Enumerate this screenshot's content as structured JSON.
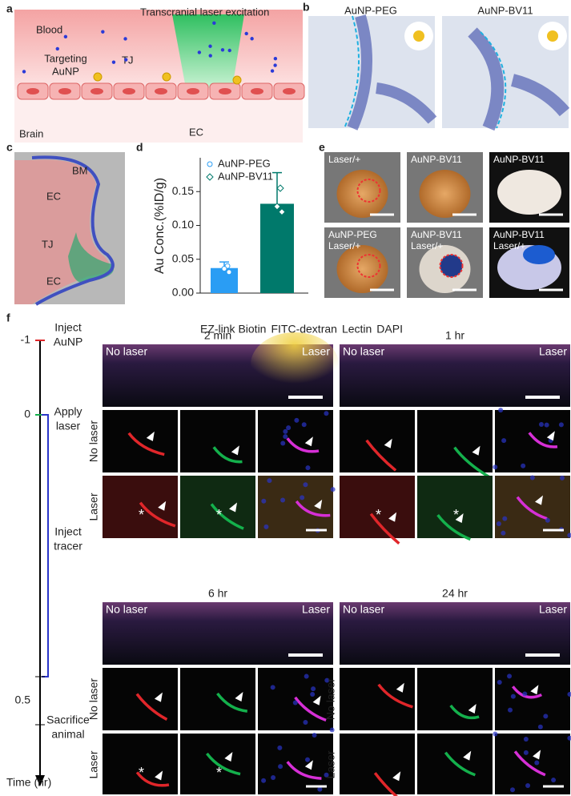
{
  "panels": {
    "a": {
      "label": "a",
      "blood": "Blood",
      "laser": "Transcranial laser excitation",
      "targeting": [
        "Targeting",
        "AuNP"
      ],
      "tj": "TJ",
      "brain": "Brain",
      "ec": "EC"
    },
    "b": {
      "label": "b",
      "peg": "AuNP-PEG",
      "bv11": "AuNP-BV11"
    },
    "c": {
      "label": "c",
      "bm": "BM",
      "ec_top": "EC",
      "tj": "TJ",
      "ec_bottom": "EC"
    },
    "d": {
      "label": "d"
    },
    "e": {
      "label": "e",
      "tiles": [
        [
          "Laser/+"
        ],
        [
          "AuNP-BV11"
        ],
        [
          "AuNP-BV11"
        ],
        [
          "AuNP-PEG",
          "Laser/+"
        ],
        [
          "AuNP-BV11",
          "Laser/+"
        ],
        [
          "AuNP-BV11",
          "Laser/+"
        ]
      ]
    },
    "f": {
      "label": "f",
      "stains": [
        {
          "name": "EZ-link Biotin",
          "color": "#e0262a"
        },
        {
          "name": "FITC-dextran",
          "color": "#14b04c"
        },
        {
          "name": "Lectin",
          "color": "#d62fd6"
        },
        {
          "name": "DAPI",
          "color": "#2a35c8"
        }
      ],
      "timeline": {
        "t_start": "-1",
        "inject_auNP": [
          "Inject",
          "AuNP"
        ],
        "t_zero": "0",
        "apply_laser": [
          "Apply",
          "laser"
        ],
        "inject_tracer": [
          "Inject",
          "tracer"
        ],
        "t_half": "0.5",
        "sacrifice": [
          "Sacrifice",
          "animal"
        ],
        "axis": "Time (hr)"
      },
      "asterisk": "*",
      "groups": [
        {
          "time": "2 min",
          "left": "No laser",
          "right": "Laser",
          "rows": [
            "No laser",
            "Laser"
          ]
        },
        {
          "time": "1 hr",
          "left": "No laser",
          "right": "Laser",
          "rows": []
        },
        {
          "time": "6 hr",
          "left": "No laser",
          "right": "Laser",
          "rows": [
            "No laser",
            "Laser"
          ]
        },
        {
          "time": "24 hr",
          "left": "No laser",
          "right": "Laser",
          "rows": [
            "No laser",
            "Laser"
          ]
        }
      ]
    }
  },
  "chart_data": {
    "type": "bar",
    "ylabel": "Au Conc.(%ID/g)",
    "ylim": [
      0,
      0.2
    ],
    "yticks": [
      {
        "value": 0,
        "label": "0.00"
      },
      {
        "value": 0.05,
        "label": "0.05"
      },
      {
        "value": 0.1,
        "label": "0.10"
      },
      {
        "value": 0.15,
        "label": "0.15"
      }
    ],
    "series": [
      {
        "name": "AuNP-PEG",
        "color": "#2a9df4",
        "marker": "circle",
        "values": [
          0.037
        ],
        "errors": [
          0.009
        ],
        "points": [
          0.04,
          0.036,
          0.031
        ]
      },
      {
        "name": "AuNP-BV11",
        "color": "#00796b",
        "marker": "diamond",
        "values": [
          0.132
        ],
        "errors": [
          0.046
        ],
        "points": [
          0.155,
          0.128,
          0.12
        ]
      }
    ]
  }
}
